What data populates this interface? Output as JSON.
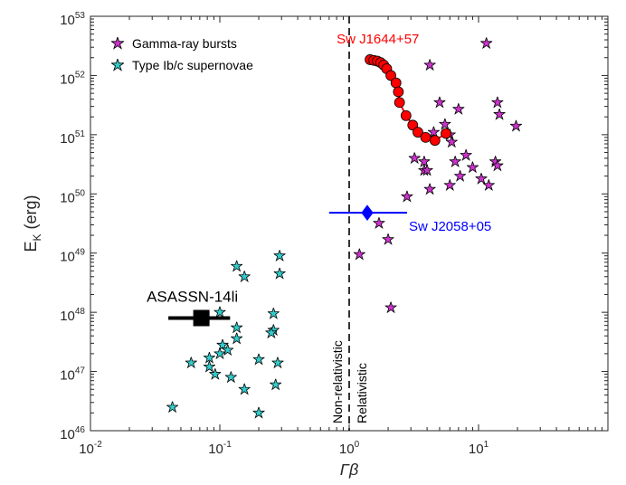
{
  "chart_data": {
    "type": "scatter",
    "xscale": "log",
    "yscale": "log",
    "xlim": [
      0.01,
      100
    ],
    "ylim": [
      1e+46,
      1e+53
    ],
    "xlabel": "Γβ",
    "ylabel": "E_K (erg)",
    "ylabel_main": "E",
    "ylabel_sub": "K",
    "ylabel_rest": " (erg)",
    "xticks": [
      {
        "base": "10",
        "exp": "-2"
      },
      {
        "base": "10",
        "exp": "-1"
      },
      {
        "base": "10",
        "exp": "0"
      },
      {
        "base": "10",
        "exp": "1"
      }
    ],
    "yticks": [
      {
        "base": "10",
        "exp": "46"
      },
      {
        "base": "10",
        "exp": "47"
      },
      {
        "base": "10",
        "exp": "48"
      },
      {
        "base": "10",
        "exp": "49"
      },
      {
        "base": "10",
        "exp": "50"
      },
      {
        "base": "10",
        "exp": "51"
      },
      {
        "base": "10",
        "exp": "52"
      },
      {
        "base": "10",
        "exp": "53"
      }
    ],
    "grid": false,
    "legend_position": "top-left",
    "colors": {
      "grb": "#cc33cc",
      "snibc": "#33cccc",
      "swj1644": "#ff0000",
      "swj2058": "#0000ff",
      "asassn": "#000000"
    },
    "vline": {
      "x": 1.0,
      "style": "dashed"
    },
    "vline_labels": {
      "left": "Non-relativistic",
      "right": "Relativistic"
    },
    "series": [
      {
        "name": "Gamma-ray bursts",
        "marker": "star",
        "points": [
          [
            11.5,
            3.5e+52
          ],
          [
            4.2,
            1.5e+52
          ],
          [
            14.0,
            3.5e+51
          ],
          [
            5.0,
            3.5e+51
          ],
          [
            7.0,
            2.7e+51
          ],
          [
            14.5,
            2.2e+51
          ],
          [
            5.5,
            1.5e+51
          ],
          [
            19.5,
            1.4e+51
          ],
          [
            6.0,
            1e+51
          ],
          [
            4.5,
            1.1e+51
          ],
          [
            6.2,
            7.5e+50
          ],
          [
            3.2,
            4e+50
          ],
          [
            8.0,
            4.5e+50
          ],
          [
            3.8,
            3.5e+50
          ],
          [
            13.5,
            3.5e+50
          ],
          [
            6.6,
            3.5e+50
          ],
          [
            14.0,
            3e+50
          ],
          [
            3.8,
            2.5e+50
          ],
          [
            9.0,
            2.8e+50
          ],
          [
            4.0,
            2.5e+50
          ],
          [
            7.2,
            2e+50
          ],
          [
            10.5,
            1.8e+50
          ],
          [
            12.0,
            1.4e+50
          ],
          [
            6.0,
            1.4e+50
          ],
          [
            4.2,
            1.2e+50
          ],
          [
            2.8,
            9e+49
          ],
          [
            1.7,
            3.2e+49
          ],
          [
            2.0,
            1.7e+49
          ],
          [
            1.2,
            9.5e+48
          ],
          [
            2.1,
            1.2e+48
          ]
        ]
      },
      {
        "name": "Type Ib/c supernovae",
        "marker": "star",
        "points": [
          [
            0.29,
            9e+48
          ],
          [
            0.29,
            4.5e+48
          ],
          [
            0.135,
            6e+48
          ],
          [
            0.155,
            4e+48
          ],
          [
            0.1,
            1e+48
          ],
          [
            0.26,
            9.5e+47
          ],
          [
            0.26,
            5e+47
          ],
          [
            0.135,
            5.5e+47
          ],
          [
            0.25,
            4.5e+47
          ],
          [
            0.135,
            3.6e+47
          ],
          [
            0.105,
            2.8e+47
          ],
          [
            0.115,
            2.3e+47
          ],
          [
            0.1,
            2e+47
          ],
          [
            0.083,
            1.7e+47
          ],
          [
            0.2,
            1.6e+47
          ],
          [
            0.06,
            1.4e+47
          ],
          [
            0.28,
            1.4e+47
          ],
          [
            0.083,
            1.2e+47
          ],
          [
            0.092,
            9e+46
          ],
          [
            0.122,
            8e+46
          ],
          [
            0.27,
            6e+46
          ],
          [
            0.155,
            5e+46
          ],
          [
            0.043,
            2.5e+46
          ],
          [
            0.2,
            2e+46
          ]
        ]
      }
    ],
    "objects": [
      {
        "name": "Sw J1644+57",
        "marker": "circle",
        "points": [
          [
            1.45,
            1.85e+52
          ],
          [
            1.55,
            1.8e+52
          ],
          [
            1.65,
            1.75e+52
          ],
          [
            1.75,
            1.65e+52
          ],
          [
            1.85,
            1.5e+52
          ],
          [
            1.95,
            1.3e+52
          ],
          [
            2.1,
            1e+52
          ],
          [
            2.3,
            7.5e+51
          ],
          [
            2.4,
            5.3e+51
          ],
          [
            2.45,
            3.5e+51
          ],
          [
            2.75,
            2.1e+51
          ],
          [
            3.1,
            1.45e+51
          ],
          [
            3.4,
            1.1e+51
          ],
          [
            3.9,
            9e+50
          ],
          [
            4.6,
            8e+50
          ],
          [
            5.6,
            1.05e+51
          ]
        ]
      },
      {
        "name": "Sw J2058+05",
        "marker": "diamond",
        "x": 1.38,
        "y": 4.8e+49,
        "xerr": [
          0.7,
          2.8
        ]
      },
      {
        "name": "ASASSN-14li",
        "marker": "square",
        "x": 0.072,
        "y": 8e+47,
        "xerr": [
          0.04,
          0.12
        ]
      }
    ]
  }
}
